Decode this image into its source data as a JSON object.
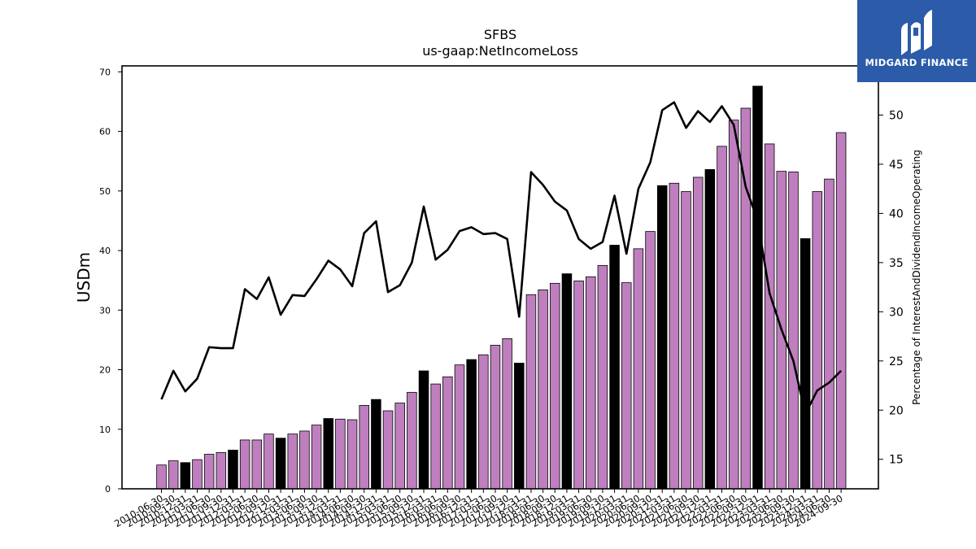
{
  "chart_data": {
    "type": "bar",
    "title": "SFBS",
    "subtitle": "us-gaap:NetIncomeLoss",
    "ylabel": "USDm",
    "y2label": "Percentage of InterestAndDividendIncomeOperating",
    "ylim": [
      0,
      71
    ],
    "y2lim": [
      12,
      55
    ],
    "yticks": [
      0,
      10,
      20,
      30,
      40,
      50,
      60,
      70
    ],
    "y2ticks": [
      15,
      20,
      25,
      30,
      35,
      40,
      45,
      50
    ],
    "grid": false,
    "categories": [
      "2010-06-30",
      "2010-09-30",
      "2010-12-31",
      "2011-03-31",
      "2011-06-30",
      "2011-09-30",
      "2011-12-31",
      "2012-03-31",
      "2012-06-30",
      "2012-09-30",
      "2012-12-31",
      "2013-03-31",
      "2013-06-30",
      "2013-09-30",
      "2013-12-31",
      "2014-03-31",
      "2014-06-30",
      "2014-09-30",
      "2014-12-31",
      "2015-03-31",
      "2015-06-30",
      "2015-09-30",
      "2015-12-31",
      "2016-03-31",
      "2016-06-30",
      "2016-09-30",
      "2016-12-31",
      "2017-03-31",
      "2017-06-30",
      "2017-09-30",
      "2017-12-31",
      "2018-03-31",
      "2018-06-30",
      "2018-09-30",
      "2018-12-31",
      "2019-03-31",
      "2019-06-30",
      "2019-09-30",
      "2019-12-31",
      "2020-03-31",
      "2020-06-30",
      "2020-09-30",
      "2020-12-31",
      "2021-03-31",
      "2021-06-30",
      "2021-09-30",
      "2021-12-31",
      "2022-03-31",
      "2022-06-30",
      "2022-09-30",
      "2022-12-31",
      "2023-03-31",
      "2023-06-30",
      "2023-09-30",
      "2023-12-31",
      "2024-03-31",
      "2024-06-30",
      "2024-09-30"
    ],
    "series": [
      {
        "kind": "bar",
        "axis": "left",
        "values": [
          4.0,
          4.7,
          4.4,
          4.9,
          5.8,
          6.1,
          6.5,
          8.2,
          8.2,
          9.2,
          8.5,
          9.2,
          9.7,
          10.7,
          11.8,
          11.7,
          11.6,
          14.0,
          15.0,
          13.1,
          14.4,
          16.2,
          19.8,
          17.6,
          18.8,
          20.8,
          21.7,
          22.5,
          24.1,
          25.2,
          21.1,
          32.6,
          33.4,
          34.5,
          36.1,
          34.9,
          35.6,
          37.5,
          40.9,
          34.6,
          40.3,
          43.2,
          50.9,
          51.3,
          49.9,
          52.3,
          53.6,
          57.5,
          61.9,
          63.9,
          67.6,
          57.9,
          53.3,
          53.2,
          42.0,
          49.9,
          52.0,
          59.8
        ],
        "colors": [
          "#bf7fbf",
          "#bf7fbf",
          "#000000",
          "#bf7fbf",
          "#bf7fbf",
          "#bf7fbf",
          "#000000",
          "#bf7fbf",
          "#bf7fbf",
          "#bf7fbf",
          "#000000",
          "#bf7fbf",
          "#bf7fbf",
          "#bf7fbf",
          "#000000",
          "#bf7fbf",
          "#bf7fbf",
          "#bf7fbf",
          "#000000",
          "#bf7fbf",
          "#bf7fbf",
          "#bf7fbf",
          "#000000",
          "#bf7fbf",
          "#bf7fbf",
          "#bf7fbf",
          "#000000",
          "#bf7fbf",
          "#bf7fbf",
          "#bf7fbf",
          "#000000",
          "#bf7fbf",
          "#bf7fbf",
          "#bf7fbf",
          "#000000",
          "#bf7fbf",
          "#bf7fbf",
          "#bf7fbf",
          "#000000",
          "#bf7fbf",
          "#bf7fbf",
          "#bf7fbf",
          "#000000",
          "#bf7fbf",
          "#bf7fbf",
          "#bf7fbf",
          "#000000",
          "#bf7fbf",
          "#bf7fbf",
          "#bf7fbf",
          "#000000",
          "#bf7fbf",
          "#bf7fbf",
          "#bf7fbf",
          "#000000",
          "#bf7fbf",
          "#bf7fbf",
          "#bf7fbf"
        ]
      },
      {
        "kind": "line",
        "axis": "right",
        "color": "#000000",
        "values": [
          21.1,
          24.0,
          21.9,
          23.2,
          26.4,
          26.3,
          26.3,
          32.3,
          31.3,
          33.5,
          29.7,
          31.7,
          31.6,
          33.3,
          35.2,
          34.3,
          32.6,
          38.0,
          39.2,
          32.0,
          32.7,
          35.0,
          40.7,
          35.3,
          36.3,
          38.2,
          38.6,
          37.9,
          38.0,
          37.4,
          29.5,
          44.2,
          42.9,
          41.2,
          40.3,
          37.4,
          36.4,
          37.1,
          41.8,
          35.9,
          42.5,
          45.2,
          50.5,
          51.3,
          48.7,
          50.4,
          49.3,
          50.9,
          49.0,
          42.7,
          39.3,
          31.9,
          28.2,
          25.0,
          19.6,
          22.0,
          22.8,
          24.0
        ]
      }
    ]
  },
  "logo": {
    "text": "MIDGARD FINANCE",
    "icon": "midgard-logo-icon",
    "background": "#2b5ba9"
  }
}
